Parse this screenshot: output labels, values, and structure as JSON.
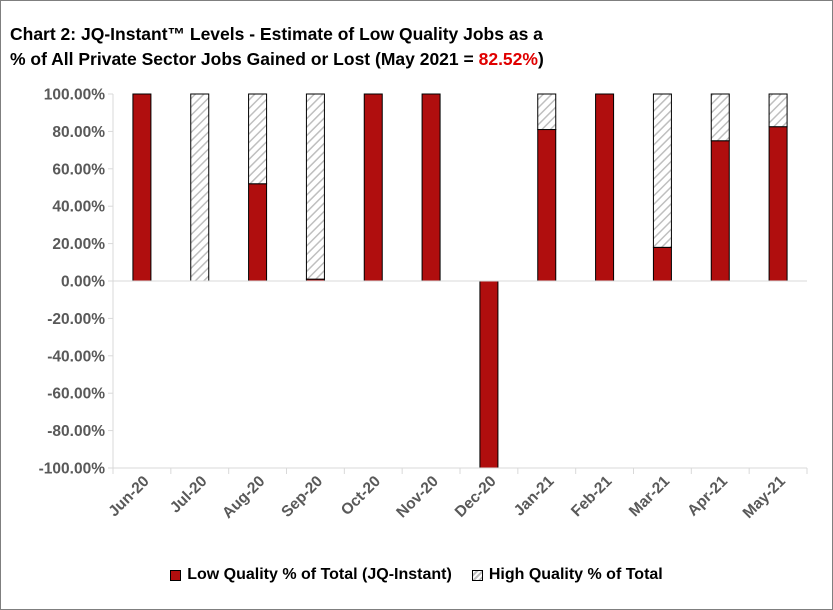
{
  "title": {
    "line1": "Chart 2: JQ-Instant™ Levels - Estimate of Low Quality Jobs as a",
    "line2_prefix": "% of All Private Sector Jobs Gained or Lost (May 2021  = ",
    "highlight": "82.52%",
    "line2_suffix": ")"
  },
  "colors": {
    "low": "#b00e0e",
    "high_fill": "#ffffff",
    "high_stripe": "#bfbfbf",
    "axis": "#d9d9d9",
    "tick_text": "#595959",
    "highlight": "#e00000"
  },
  "chart_data": {
    "type": "bar",
    "stacked": true,
    "categories": [
      "Jun-20",
      "Jul-20",
      "Aug-20",
      "Sep-20",
      "Oct-20",
      "Nov-20",
      "Dec-20",
      "Jan-21",
      "Feb-21",
      "Mar-21",
      "Apr-21",
      "May-21"
    ],
    "series": [
      {
        "name": "Low Quality % of Total (JQ-Instant)",
        "values": [
          100,
          0,
          52,
          1,
          100,
          100,
          -100,
          81,
          100,
          18,
          75,
          82.52
        ]
      },
      {
        "name": "High Quality % of Total",
        "values": [
          0,
          100,
          48,
          99,
          0,
          0,
          0,
          19,
          0,
          82,
          25,
          17.48
        ]
      }
    ],
    "ylim": [
      -100,
      100
    ],
    "yticks": [
      "100.00%",
      "80.00%",
      "60.00%",
      "40.00%",
      "20.00%",
      "0.00%",
      "-20.00%",
      "-40.00%",
      "-60.00%",
      "-80.00%",
      "-100.00%"
    ],
    "ytick_values": [
      100,
      80,
      60,
      40,
      20,
      0,
      -20,
      -40,
      -60,
      -80,
      -100
    ],
    "grid": false,
    "legend_position": "bottom"
  }
}
